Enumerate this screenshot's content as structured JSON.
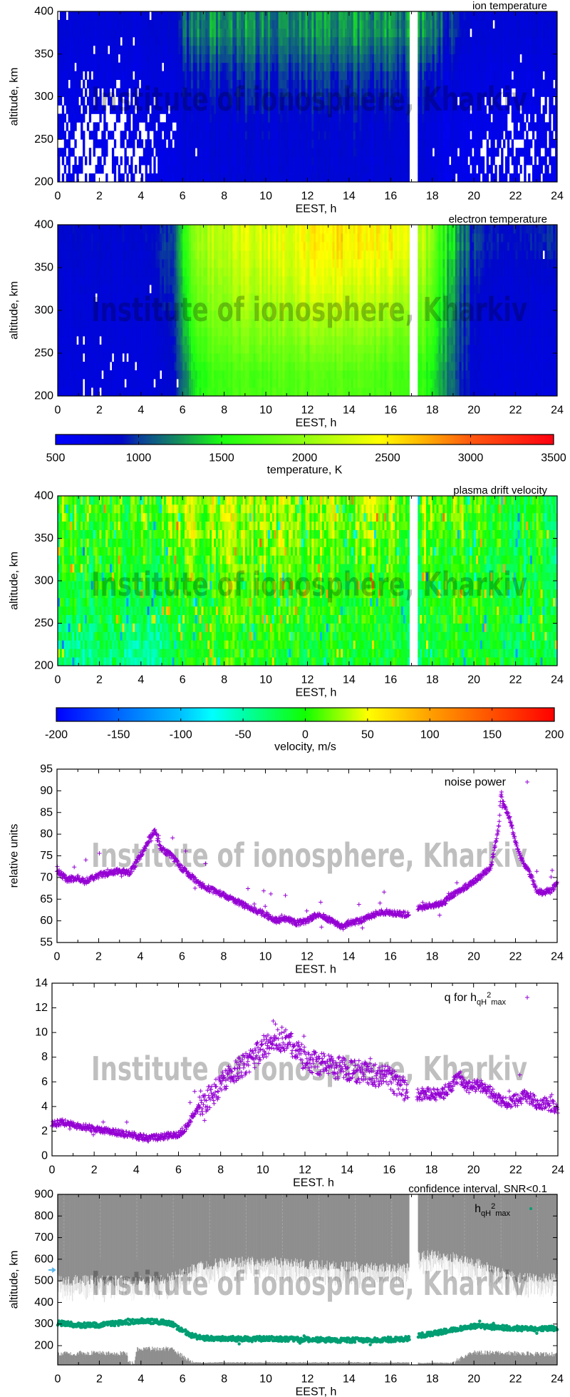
{
  "watermark": "Institute of ionosphere, Kharkiv",
  "chart_data": [
    {
      "type": "heatmap",
      "title": "ion temperature",
      "xlabel": "EEST, h",
      "ylabel": "altitude, km",
      "xlim": [
        0,
        24
      ],
      "ylim": [
        200,
        400
      ],
      "xticks": [
        0,
        2,
        4,
        6,
        8,
        10,
        12,
        14,
        16,
        18,
        20,
        22,
        24
      ],
      "yticks": [
        200,
        250,
        300,
        350,
        400
      ],
      "data_gap_hours": [
        16.9,
        17.3
      ],
      "hour_bins": [
        0,
        1,
        2,
        3,
        4,
        5,
        6,
        7,
        8,
        9,
        10,
        11,
        12,
        13,
        14,
        15,
        16,
        17,
        18,
        19,
        20,
        21,
        22,
        23
      ],
      "altitude_bands": [
        [
          200,
          250
        ],
        [
          250,
          300
        ],
        [
          300,
          350
        ],
        [
          350,
          400
        ]
      ],
      "values_K": [
        [
          650,
          650,
          650,
          650,
          650,
          700,
          750,
          780,
          800,
          800,
          800,
          820,
          820,
          820,
          800,
          800,
          800,
          780,
          700,
          650,
          650,
          650,
          650,
          650
        ],
        [
          680,
          680,
          680,
          680,
          700,
          720,
          780,
          820,
          850,
          850,
          850,
          860,
          860,
          860,
          850,
          850,
          840,
          820,
          740,
          680,
          660,
          660,
          660,
          660
        ],
        [
          720,
          720,
          720,
          720,
          740,
          760,
          880,
          950,
          980,
          980,
          980,
          1000,
          1000,
          1000,
          980,
          980,
          960,
          950,
          850,
          750,
          720,
          720,
          720,
          720
        ],
        [
          780,
          780,
          780,
          780,
          800,
          850,
          1150,
          1250,
          1250,
          1200,
          1200,
          1250,
          1250,
          1250,
          1250,
          1250,
          1200,
          1250,
          1100,
          850,
          800,
          800,
          800,
          800
        ]
      ],
      "missing_fraction": [
        [
          0.45,
          0.5,
          0.6,
          0.55,
          0.3,
          0.1,
          0.02,
          0,
          0,
          0,
          0,
          0,
          0,
          0,
          0,
          0,
          0,
          0,
          0.02,
          0.05,
          0.25,
          0.3,
          0.35,
          0.3
        ],
        [
          0.3,
          0.35,
          0.45,
          0.4,
          0.2,
          0.05,
          0,
          0,
          0,
          0,
          0,
          0,
          0,
          0,
          0,
          0,
          0,
          0,
          0.01,
          0.05,
          0.15,
          0.25,
          0.2,
          0.2
        ],
        [
          0.05,
          0.05,
          0.08,
          0.08,
          0.05,
          0.01,
          0,
          0,
          0,
          0,
          0,
          0,
          0,
          0,
          0,
          0,
          0,
          0,
          0,
          0.01,
          0.02,
          0.03,
          0.03,
          0.03
        ],
        [
          0.01,
          0.01,
          0.01,
          0.01,
          0.01,
          0,
          0,
          0,
          0,
          0,
          0,
          0,
          0,
          0,
          0,
          0,
          0,
          0,
          0,
          0,
          0.01,
          0.01,
          0.01,
          0.01
        ]
      ],
      "colorscale": "temperature"
    },
    {
      "type": "heatmap",
      "title": "electron temperature",
      "xlabel": "EEST, h",
      "ylabel": "altitude, km",
      "xlim": [
        0,
        24
      ],
      "ylim": [
        200,
        400
      ],
      "xticks": [
        0,
        2,
        4,
        6,
        8,
        10,
        12,
        14,
        16,
        18,
        20,
        22,
        24
      ],
      "yticks": [
        200,
        250,
        300,
        350,
        400
      ],
      "data_gap_hours": [
        16.9,
        17.3
      ],
      "hour_bins": [
        0,
        1,
        2,
        3,
        4,
        5,
        6,
        7,
        8,
        9,
        10,
        11,
        12,
        13,
        14,
        15,
        16,
        17,
        18,
        19,
        20,
        21,
        22,
        23
      ],
      "altitude_bands": [
        [
          200,
          250
        ],
        [
          250,
          300
        ],
        [
          300,
          350
        ],
        [
          350,
          400
        ]
      ],
      "values_K": [
        [
          750,
          750,
          750,
          750,
          750,
          850,
          1400,
          1650,
          1700,
          1700,
          1750,
          1750,
          1750,
          1750,
          1750,
          1700,
          1700,
          1600,
          1300,
          900,
          780,
          750,
          750,
          750
        ],
        [
          780,
          780,
          780,
          780,
          780,
          900,
          1600,
          1850,
          1900,
          1950,
          1950,
          2000,
          2000,
          2000,
          2000,
          1950,
          1900,
          1800,
          1400,
          950,
          800,
          780,
          780,
          780
        ],
        [
          800,
          800,
          800,
          800,
          820,
          950,
          1750,
          2000,
          2100,
          2150,
          2200,
          2250,
          2300,
          2300,
          2250,
          2250,
          2200,
          2000,
          1500,
          1000,
          850,
          800,
          800,
          800
        ],
        [
          850,
          850,
          850,
          850,
          880,
          1000,
          1900,
          2150,
          2250,
          2300,
          2350,
          2400,
          2450,
          2500,
          2500,
          2450,
          2450,
          2200,
          1600,
          1100,
          950,
          900,
          900,
          950
        ]
      ],
      "missing_fraction": [
        [
          0,
          0.05,
          0.08,
          0.08,
          0.05,
          0.02,
          0,
          0,
          0,
          0,
          0,
          0,
          0,
          0,
          0,
          0,
          0,
          0,
          0,
          0,
          0,
          0,
          0,
          0
        ],
        [
          0,
          0.02,
          0.04,
          0.04,
          0.02,
          0,
          0,
          0,
          0,
          0,
          0,
          0,
          0,
          0,
          0,
          0,
          0,
          0,
          0,
          0,
          0,
          0,
          0,
          0
        ],
        [
          0,
          0,
          0.01,
          0.01,
          0.01,
          0,
          0,
          0,
          0,
          0,
          0,
          0,
          0,
          0,
          0,
          0,
          0,
          0,
          0,
          0,
          0,
          0,
          0,
          0
        ],
        [
          0,
          0,
          0,
          0,
          0,
          0,
          0,
          0,
          0,
          0,
          0,
          0,
          0,
          0,
          0,
          0,
          0,
          0,
          0,
          0,
          0,
          0.01,
          0,
          0.01
        ]
      ],
      "colorscale": "temperature"
    },
    {
      "type": "colorbar",
      "label": "temperature, K",
      "range": [
        500,
        3500
      ],
      "ticks": [
        500,
        1000,
        1500,
        2000,
        2500,
        3000,
        3500
      ],
      "stops": [
        [
          500,
          "#0000ff"
        ],
        [
          900,
          "#0008c8"
        ],
        [
          1000,
          "#0a3c9c"
        ],
        [
          1250,
          "#14905a"
        ],
        [
          1500,
          "#1aff10"
        ],
        [
          2000,
          "#90ff10"
        ],
        [
          2450,
          "#ffff00"
        ],
        [
          2700,
          "#ffb800"
        ],
        [
          3000,
          "#ff5810"
        ],
        [
          3500,
          "#ff0010"
        ]
      ]
    },
    {
      "type": "heatmap",
      "title": "plasma drift velocity",
      "xlabel": "EEST, h",
      "ylabel": "altitude, km",
      "xlim": [
        0,
        24
      ],
      "ylim": [
        200,
        400
      ],
      "xticks": [
        0,
        2,
        4,
        6,
        8,
        10,
        12,
        14,
        16,
        18,
        20,
        22,
        24
      ],
      "yticks": [
        200,
        250,
        300,
        350,
        400
      ],
      "data_gap_hours": [
        16.9,
        17.3
      ],
      "hour_bins": [
        0,
        1,
        2,
        3,
        4,
        5,
        6,
        7,
        8,
        9,
        10,
        11,
        12,
        13,
        14,
        15,
        16,
        17,
        18,
        19,
        20,
        21,
        22,
        23
      ],
      "altitude_bands": [
        [
          200,
          250
        ],
        [
          250,
          300
        ],
        [
          300,
          350
        ],
        [
          350,
          400
        ]
      ],
      "values_m_s": [
        [
          -40,
          -35,
          -30,
          -40,
          -45,
          -30,
          -10,
          0,
          0,
          0,
          -5,
          -10,
          -10,
          -10,
          -15,
          -15,
          -15,
          -20,
          -10,
          -5,
          -10,
          -15,
          -20,
          -20
        ],
        [
          -20,
          -15,
          -15,
          -20,
          -25,
          -15,
          0,
          10,
          15,
          10,
          5,
          0,
          0,
          0,
          -5,
          -5,
          -10,
          -10,
          -5,
          0,
          -5,
          -10,
          -15,
          -15
        ],
        [
          -10,
          -10,
          -5,
          -10,
          -10,
          0,
          15,
          20,
          20,
          15,
          10,
          10,
          10,
          5,
          5,
          5,
          0,
          0,
          0,
          0,
          -10,
          -15,
          -20,
          -20
        ],
        [
          0,
          0,
          0,
          0,
          5,
          15,
          35,
          40,
          35,
          30,
          30,
          25,
          25,
          25,
          25,
          25,
          20,
          20,
          15,
          10,
          0,
          -10,
          -15,
          -15
        ]
      ],
      "colorscale": "velocity"
    },
    {
      "type": "colorbar",
      "label": "velocity, m/s",
      "range": [
        -200,
        200
      ],
      "ticks": [
        -200,
        -150,
        -100,
        -50,
        0,
        50,
        100,
        150,
        200
      ],
      "stops": [
        [
          -200,
          "#0000ff"
        ],
        [
          -150,
          "#0066ff"
        ],
        [
          -100,
          "#00c0ff"
        ],
        [
          -75,
          "#00ffff"
        ],
        [
          -50,
          "#00ffaa"
        ],
        [
          0,
          "#10ff00"
        ],
        [
          50,
          "#ffff00"
        ],
        [
          100,
          "#ffa000"
        ],
        [
          150,
          "#ff5000"
        ],
        [
          200,
          "#ff0000"
        ]
      ]
    },
    {
      "type": "scatter",
      "legend": "noise power",
      "legend_position": "top-right",
      "xlabel": "EEST. h",
      "ylabel": "relative units",
      "xlim": [
        0,
        24
      ],
      "ylim": [
        55,
        95
      ],
      "xticks": [
        0,
        2,
        4,
        6,
        8,
        10,
        12,
        14,
        16,
        18,
        20,
        22,
        24
      ],
      "yticks": [
        55,
        60,
        65,
        70,
        75,
        80,
        85,
        90,
        95
      ],
      "marker": "+",
      "color": "#9400d3",
      "data_gap_hours": [
        16.9,
        17.3
      ],
      "x": [
        0,
        0.5,
        1,
        1.3,
        2,
        3,
        3.5,
        4,
        4.5,
        4.7,
        5,
        5.5,
        6,
        6.5,
        7,
        8,
        9,
        9.5,
        10,
        10.5,
        11,
        11.5,
        12,
        12.5,
        13,
        13.7,
        14,
        14.5,
        15,
        15.5,
        16,
        16.5,
        16.9,
        17.3,
        18,
        18.5,
        19,
        19.5,
        20,
        20.5,
        20.8,
        21,
        21.2,
        21.3,
        21.5,
        21.7,
        22,
        22.3,
        22.6,
        23,
        23.3,
        23.7,
        24
      ],
      "y": [
        71.5,
        69.5,
        70,
        69,
        70.5,
        71.5,
        71,
        75,
        79.5,
        80.5,
        76.5,
        75,
        72,
        70,
        68,
        66,
        63.5,
        62.5,
        61.5,
        60,
        60.5,
        59.5,
        60,
        61.5,
        60.5,
        58.5,
        59.5,
        60,
        61,
        62,
        62,
        61.5,
        61.5,
        63,
        63.5,
        64,
        66,
        67.5,
        69,
        71,
        72,
        77,
        82,
        89,
        86,
        84,
        78,
        74,
        72,
        67,
        66.5,
        67,
        68.5
      ]
    },
    {
      "type": "scatter",
      "legend": {
        "main": "q for h",
        "sub": "qH",
        "sup": "2",
        "sub2": "max"
      },
      "legend_position": "top-right",
      "xlabel": "EEST. h",
      "xlim": [
        0,
        24
      ],
      "ylim": [
        0,
        14
      ],
      "xticks": [
        0,
        2,
        4,
        6,
        8,
        10,
        12,
        14,
        16,
        18,
        20,
        22,
        24
      ],
      "yticks": [
        0,
        2,
        4,
        6,
        8,
        10,
        12,
        14
      ],
      "marker": "+",
      "color": "#9400d3",
      "data_gap_hours": [
        16.9,
        17.3
      ],
      "x": [
        0,
        0.5,
        1,
        2,
        3,
        4,
        4.6,
        5,
        6,
        6.3,
        6.7,
        7,
        7.5,
        8,
        8.5,
        9,
        9.5,
        10,
        10.5,
        11,
        11.5,
        12,
        12.5,
        13,
        13.5,
        14,
        14.5,
        15,
        15.5,
        16,
        16.5,
        16.9,
        17.3,
        18,
        18.5,
        19,
        19.3,
        19.7,
        20,
        20.5,
        21,
        21.5,
        22,
        22.5,
        23,
        23.5,
        24
      ],
      "y": [
        2.6,
        2.7,
        2.5,
        2.2,
        1.9,
        1.6,
        1.4,
        1.5,
        1.7,
        2.2,
        3.3,
        4.0,
        4.8,
        5.8,
        6.5,
        7.3,
        7.8,
        8.8,
        9.2,
        9.5,
        8.8,
        7.8,
        7.5,
        7.3,
        7.2,
        7.0,
        6.8,
        6.6,
        6.4,
        6.4,
        5.5,
        5.4,
        5.0,
        5.0,
        5.0,
        5.8,
        6.5,
        5.5,
        5.7,
        5.7,
        4.8,
        4.3,
        4.5,
        4.9,
        4.3,
        4.2,
        3.9
      ]
    },
    {
      "type": "scatter",
      "title": "confidence interval, SNR<0.1",
      "legend": {
        "main": "h",
        "sub": "qH",
        "sup": "2",
        "sub2": "max"
      },
      "legend_position": "top-right",
      "xlabel": "EEST, h",
      "ylabel": "altitude, km",
      "xlim": [
        0,
        24
      ],
      "ylim": [
        111,
        900
      ],
      "xticks": [
        0,
        2,
        4,
        6,
        8,
        10,
        12,
        14,
        16,
        18,
        20,
        22,
        24
      ],
      "yticks": [
        200,
        300,
        400,
        500,
        600,
        700,
        800,
        900
      ],
      "marker": "dot",
      "color": "#009e73",
      "band_color": "#8e8e8e",
      "arrow_marker_km": 550,
      "arrow_color": "#56b4e9",
      "data_gap_hours": [
        16.9,
        17.3
      ],
      "x": [
        0,
        1,
        2,
        3,
        4,
        5,
        5.5,
        6,
        6.5,
        7,
        8,
        10,
        12,
        14,
        16,
        16.9,
        17.3,
        18,
        19,
        20,
        21,
        22,
        23,
        24
      ],
      "y": [
        305,
        295,
        295,
        305,
        315,
        310,
        300,
        270,
        245,
        235,
        232,
        232,
        228,
        225,
        228,
        232,
        245,
        255,
        275,
        290,
        285,
        280,
        278,
        280
      ],
      "upper_interval_x": [
        0,
        2,
        4,
        5,
        6,
        7,
        8,
        10,
        12,
        14,
        16,
        16.9,
        17.3,
        18,
        19,
        20,
        21,
        22,
        23,
        24
      ],
      "upper_interval_y": [
        505,
        500,
        500,
        505,
        540,
        570,
        585,
        590,
        575,
        565,
        560,
        560,
        610,
        620,
        610,
        590,
        545,
        515,
        510,
        510
      ],
      "lower_interval_x": [
        0,
        3.3,
        3.4,
        3.7,
        3.8,
        5.5,
        6,
        6.5,
        16.9,
        17.3,
        19,
        19.5,
        20,
        24
      ],
      "lower_interval_y": [
        165,
        165,
        120,
        120,
        185,
        185,
        150,
        122,
        122,
        120,
        120,
        150,
        168,
        160
      ]
    }
  ]
}
